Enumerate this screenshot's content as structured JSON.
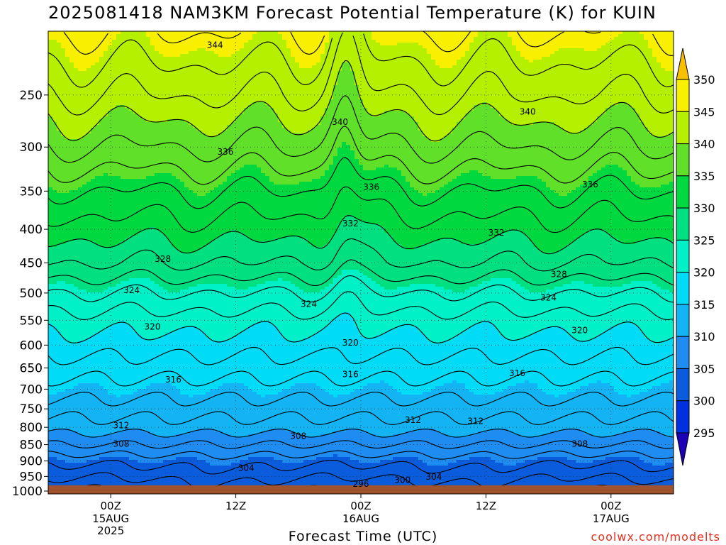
{
  "title": "2025081418 NAM3KM Forecast Potential Temperature (K) for KUIN",
  "source": "coolwx.com/modelts",
  "chart_data": {
    "type": "heatmap",
    "title": "2025081418 NAM3KM Forecast Potential Temperature (K) for KUIN",
    "xlabel": "Forecast Time (UTC)",
    "ylabel": "",
    "y_scale": "log",
    "y_inverted": true,
    "y_ticks": [
      250,
      300,
      350,
      400,
      450,
      500,
      550,
      600,
      650,
      700,
      750,
      800,
      850,
      900,
      950,
      1000
    ],
    "y_range": [
      200,
      1010
    ],
    "x_ticks": [
      {
        "hour": 6,
        "time": "00Z",
        "date": "15AUG",
        "year": "2025"
      },
      {
        "hour": 18,
        "time": "12Z",
        "date": "",
        "year": ""
      },
      {
        "hour": 30,
        "time": "00Z",
        "date": "16AUG",
        "year": ""
      },
      {
        "hour": 42,
        "time": "12Z",
        "date": "",
        "year": ""
      },
      {
        "hour": 54,
        "time": "00Z",
        "date": "17AUG",
        "year": ""
      }
    ],
    "x_range_hours": [
      0,
      60
    ],
    "grid": true,
    "surface_pressure": 980,
    "colorbar": {
      "levels": [
        295,
        300,
        305,
        310,
        315,
        320,
        325,
        330,
        335,
        340,
        345,
        350
      ],
      "labels": [
        "350",
        "345",
        "340",
        "335",
        "330",
        "325",
        "320",
        "315",
        "310",
        "305",
        "300",
        "295"
      ],
      "colors": [
        "#1c00b8",
        "#0030e0",
        "#0a5cdc",
        "#1e8cf0",
        "#14b4f4",
        "#00dcf8",
        "#00f0c8",
        "#00e080",
        "#00d840",
        "#60e028",
        "#b4f000",
        "#f8f000",
        "#f8c000"
      ]
    },
    "levels_profile": [
      {
        "p": 1000,
        "theta": 301
      },
      {
        "p": 950,
        "theta": 303
      },
      {
        "p": 900,
        "theta": 305
      },
      {
        "p": 850,
        "theta": 308
      },
      {
        "p": 800,
        "theta": 311
      },
      {
        "p": 750,
        "theta": 313
      },
      {
        "p": 700,
        "theta": 315
      },
      {
        "p": 650,
        "theta": 317
      },
      {
        "p": 600,
        "theta": 319
      },
      {
        "p": 550,
        "theta": 321
      },
      {
        "p": 500,
        "theta": 324
      },
      {
        "p": 450,
        "theta": 328
      },
      {
        "p": 400,
        "theta": 331
      },
      {
        "p": 350,
        "theta": 334
      },
      {
        "p": 300,
        "theta": 338
      },
      {
        "p": 250,
        "theta": 342
      },
      {
        "p": 200,
        "theta": 346
      }
    ],
    "contour_labels": [
      {
        "text": "344",
        "hour": 16,
        "p": 210
      },
      {
        "text": "340",
        "hour": 28,
        "p": 275
      },
      {
        "text": "340",
        "hour": 46,
        "p": 265
      },
      {
        "text": "336",
        "hour": 17,
        "p": 305
      },
      {
        "text": "336",
        "hour": 31,
        "p": 345
      },
      {
        "text": "336",
        "hour": 52,
        "p": 342
      },
      {
        "text": "332",
        "hour": 29,
        "p": 392
      },
      {
        "text": "332",
        "hour": 43,
        "p": 405
      },
      {
        "text": "328",
        "hour": 11,
        "p": 444
      },
      {
        "text": "328",
        "hour": 49,
        "p": 468
      },
      {
        "text": "324",
        "hour": 8,
        "p": 495
      },
      {
        "text": "324",
        "hour": 25,
        "p": 520
      },
      {
        "text": "324",
        "hour": 48,
        "p": 508
      },
      {
        "text": "320",
        "hour": 10,
        "p": 563
      },
      {
        "text": "320",
        "hour": 29,
        "p": 595
      },
      {
        "text": "320",
        "hour": 51,
        "p": 570
      },
      {
        "text": "316",
        "hour": 12,
        "p": 677
      },
      {
        "text": "316",
        "hour": 29,
        "p": 665
      },
      {
        "text": "316",
        "hour": 45,
        "p": 662
      },
      {
        "text": "312",
        "hour": 35,
        "p": 780
      },
      {
        "text": "312",
        "hour": 7,
        "p": 795
      },
      {
        "text": "312",
        "hour": 41,
        "p": 783
      },
      {
        "text": "308",
        "hour": 7,
        "p": 848
      },
      {
        "text": "308",
        "hour": 24,
        "p": 825
      },
      {
        "text": "308",
        "hour": 51,
        "p": 848
      },
      {
        "text": "304",
        "hour": 19,
        "p": 922
      },
      {
        "text": "304",
        "hour": 37,
        "p": 952
      },
      {
        "text": "300",
        "hour": 34,
        "p": 962
      },
      {
        "text": "296",
        "hour": 30,
        "p": 976
      }
    ]
  }
}
